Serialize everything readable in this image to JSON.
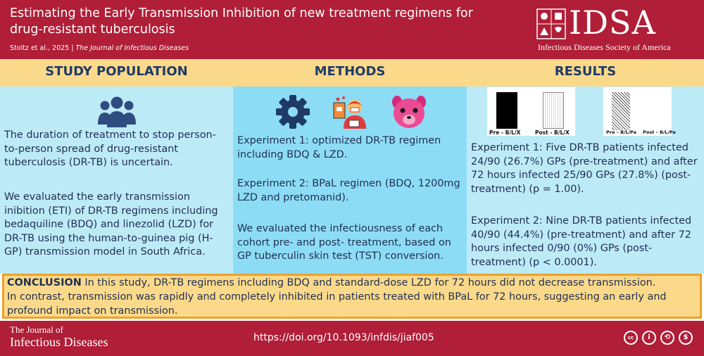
{
  "header": {
    "title": "Estimating the Early Transmission Inhibition of new treatment regimens for drug-resistant tuberculosis",
    "citation_authors": "Stoltz et al., 2025",
    "citation_separator": "|",
    "citation_journal": "The Journal of Infectious Diseases",
    "logo_text": "IDSA",
    "logo_subtitle": "Infectious Diseases Society of America"
  },
  "sections": {
    "population": {
      "title": "STUDY POPULATION",
      "icon": "group-people-icon",
      "para1": "The duration of treatment to stop person-to-person spread of drug-resistant tuberculosis (DR-TB) is uncertain.",
      "para2": "We evaluated the early transmission inibition (ETI) of DR-TB regimens including bedaquiline (BDQ) and linezolid (LZD) for DR-TB using the human-to-guinea pig (H-GP) transmission model in South Africa."
    },
    "methods": {
      "title": "METHODS",
      "icons": [
        "gear-icon",
        "patient-icon",
        "guinea-pig-icon"
      ],
      "para1": "Experiment 1: optimized DR-TB regimen including BDQ & LZD.",
      "para2": "Experiment 2: BPaL regimen (BDQ, 1200mg LZD and pretomanid).",
      "para3": "We evaluated the infectiousness of each cohort pre- and post- treatment, based on GP tuberculin skin test (TST) conversion."
    },
    "results": {
      "title": "RESULTS",
      "panels": [
        {
          "pre_label": "Pre - B/L/X",
          "post_label": "Post - B/L/X"
        },
        {
          "pre_label": "Pre – B/L/Pa",
          "post_label": "Post – B/L/Pa"
        }
      ],
      "para1": "Experiment 1: Five DR-TB patients infected 24/90 (26.7%) GPs (pre-treatment) and after 72 hours infected 25/90 GPs (27.8%) (post-treatment) (p = 1.00).",
      "para2": "Experiment 2: Nine DR-TB patients infected 40/90 (44.4%) (pre-treatment) and after 72 hours infected  0/90 (0%) GPs (post-treatment) (p < 0.0001)."
    }
  },
  "conclusion": {
    "label": "CONCLUSION",
    "line1": "In this study, DR-TB regimens including BDQ and standard-dose LZD for 72 hours did not decrease transmission.",
    "line2": "In contrast, transmission was rapidly and completely inhibited in patients treated with BPaL for 72 hours, suggesting an early and profound impact on transmission."
  },
  "footer": {
    "journal_line1": "The Journal of",
    "journal_line2": "Infectious Diseases",
    "doi": "https://doi.org/10.1093/infdis/jiaf005",
    "license_icons": [
      "cc-icon",
      "by-icon",
      "sa-icon",
      "nc-icon"
    ],
    "cc_label": "cc",
    "by_label": "i",
    "sa_label": "⟲",
    "nc_label": "$"
  },
  "colors": {
    "brand_red": "#b01e37",
    "section_yellow": "#fbd98a",
    "light_blue": "#bdeaf7",
    "mid_blue": "#8ddcf5",
    "navy_text": "#1f2f52",
    "conclusion_border": "#f0a028"
  }
}
